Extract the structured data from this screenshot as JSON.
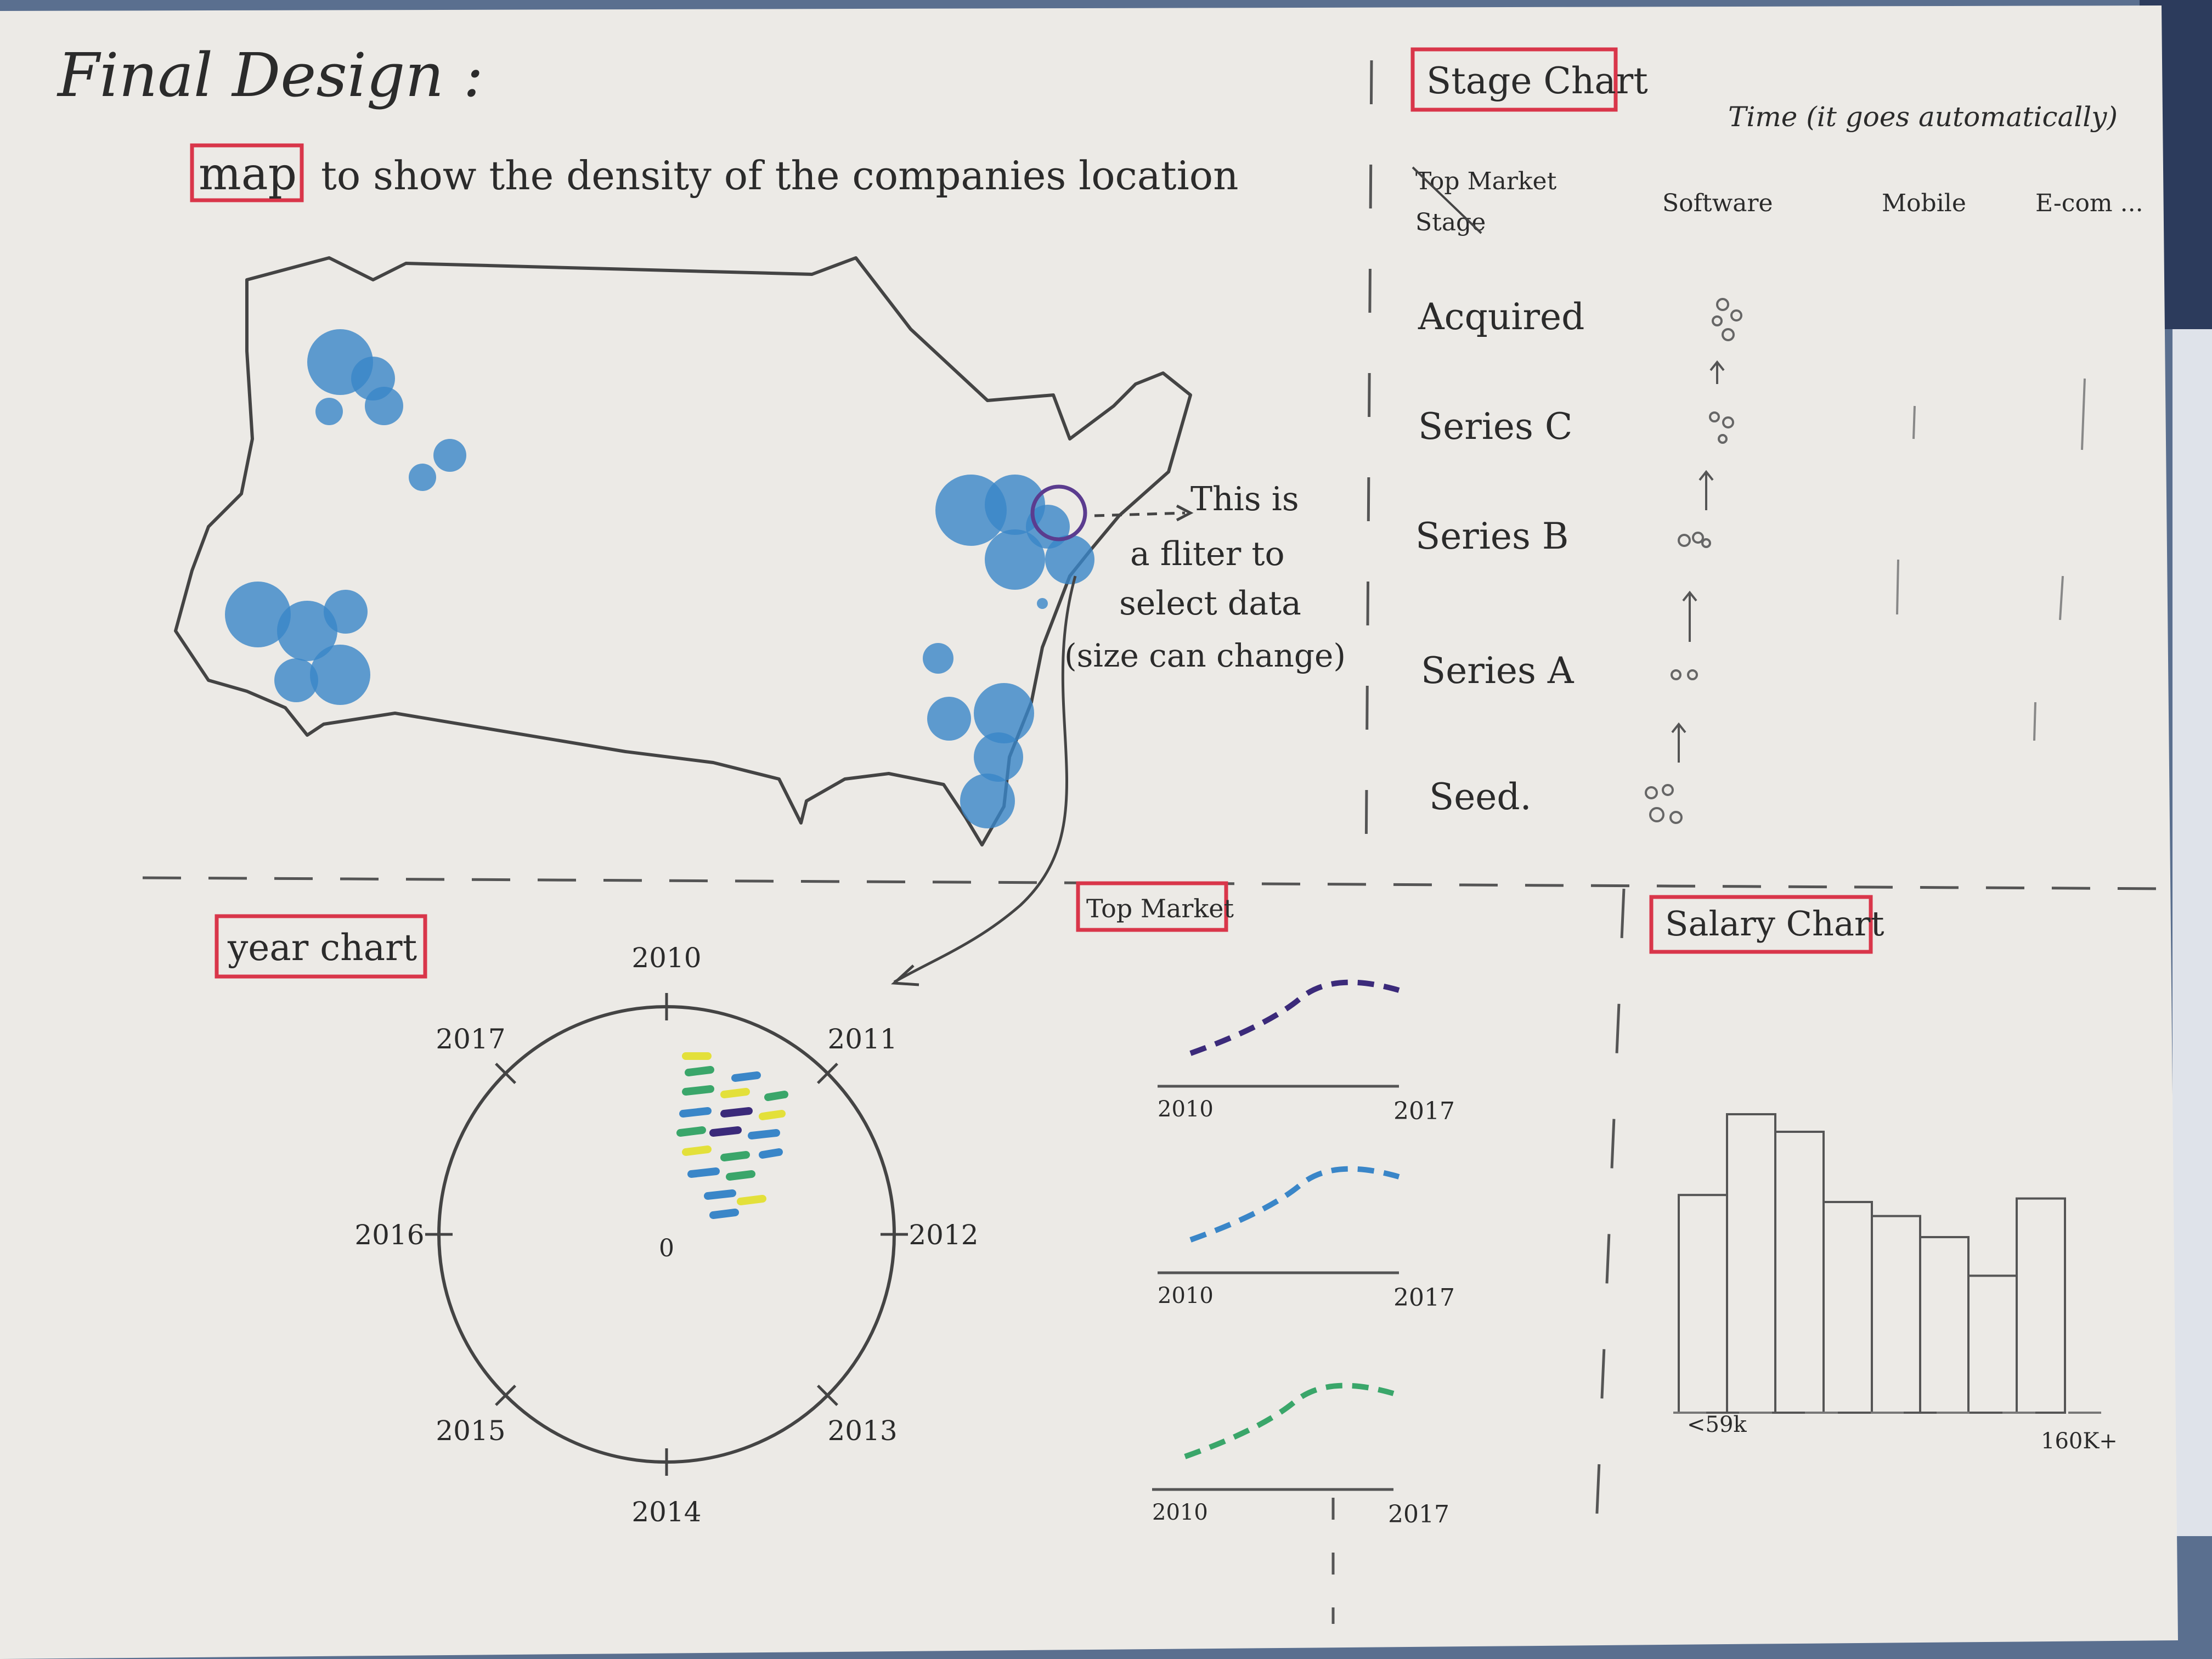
{
  "title": "Final Design :",
  "map": {
    "label": "map",
    "description": "to show the density of the companies location",
    "annotation": [
      "This is",
      "a fliter to",
      "select data",
      "(size can change)"
    ]
  },
  "stage_chart": {
    "label": "Stage Chart",
    "time_note": "Time (it goes automatically)",
    "corner_top": "Top Market",
    "corner_bottom": "Stage",
    "columns": [
      "Software",
      "Mobile",
      "E-com ..."
    ],
    "stages": [
      "Acquired",
      "Series C",
      "Series B",
      "Series A",
      "Seed."
    ]
  },
  "top_market": {
    "label": "Top Market",
    "lines": [
      {
        "start": "2010",
        "end": "2017",
        "color": "#3b2a7a"
      },
      {
        "start": "2010",
        "end": "2017",
        "color": "#3a86c8"
      },
      {
        "start": "2010",
        "end": "2017",
        "color": "#3aa66a"
      }
    ]
  },
  "year_chart": {
    "label": "year chart",
    "center": "0",
    "years": [
      "2010",
      "2011",
      "2012",
      "2013",
      "2014",
      "2015",
      "2016",
      "2017"
    ]
  },
  "salary_chart": {
    "label": "Salary Chart",
    "x_start": "<59k",
    "x_end": "160K+",
    "bars": [
      0.62,
      0.85,
      0.8,
      0.6,
      0.56,
      0.5,
      0.39,
      0.61
    ]
  },
  "colors": {
    "paper": "#eceae6",
    "ink": "#2b2b2b",
    "red_box": "#d9364a",
    "blue_crayon": "#3a86c8",
    "purple": "#3b2a7a",
    "green": "#3aa66a",
    "yellow": "#e3e03a"
  }
}
